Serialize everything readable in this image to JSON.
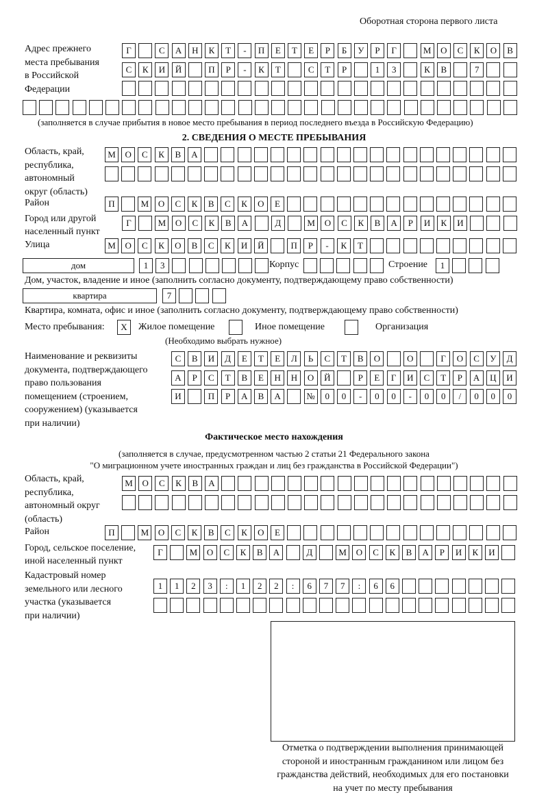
{
  "page_header": "Оборотная сторона первого листа",
  "prev_address": {
    "label": [
      "Адрес прежнего",
      "места пребывания",
      "в Российской",
      "Федерации"
    ],
    "line1": "Г САНКТ-ПЕТЕРБУРГ МОСКОВ",
    "line2": "СКИЙ ПР-КТ СТР 13 КВ 7",
    "line3": "",
    "line4": "",
    "hint": "(заполняется в случае прибытия в новое место пребывания в период последнего въезда в Российскую Федерацию)"
  },
  "section2": {
    "title": "2. СВЕДЕНИЯ О МЕСТЕ ПРЕБЫВАНИЯ",
    "region_label": [
      "Область, край,",
      "республика,",
      "автономный",
      "округ (область)"
    ],
    "region1": "МОСКВА",
    "region2": "",
    "district_label": "Район",
    "district": "П МОСКВСКОЕ",
    "city_label": [
      "Город или другой",
      "населенный пункт"
    ],
    "city": "Г МОСКВА Д МОСКВАРИКИ",
    "street_label": "Улица",
    "street": "МОСКОВСКИЙ ПР-КТ",
    "house_type": "дом",
    "house_number": "13",
    "korpus_label": "Корпус",
    "korpus": "",
    "building_label": "Строение",
    "building": "1",
    "house_hint": "Дом, участок, владение и иное (заполнить согласно документу, подтверждающему право собственности)",
    "apt_type": "квартира",
    "apt_number": "7",
    "apt_hint": "Квартира, комната, офис и иное (заполнить согласно документу, подтверждающему право собственности)",
    "place_label": "Место пребывания:",
    "place_options": [
      {
        "label": "Жилое помещение",
        "mark": "X"
      },
      {
        "label": "Иное помещение",
        "mark": ""
      },
      {
        "label": "Организация",
        "mark": ""
      }
    ],
    "place_hint": "(Необходимо выбрать нужное)",
    "doc_label": [
      "Наименование и реквизиты",
      "документа, подтверждающего",
      "право пользования",
      "помещением (строением,",
      "сооружением) (указывается",
      "при наличии)"
    ],
    "doc1": "СВИДЕТЕЛЬСТВО О ГОСУД",
    "doc2": "АРСТВЕННОЙ РЕГИСТРАЦИ",
    "doc3": "И ПРАВА №00-00-00/000"
  },
  "actual": {
    "title": "Фактическое место нахождения",
    "note1": "(заполняется в случае, предусмотренном частью 2 статьи 21 Федерального закона",
    "note2": "\"О миграционном учете иностранных граждан и лиц без гражданства в Российской Федерации\")",
    "region_label": [
      "Область, край,",
      "республика,",
      "автономный округ",
      "(область)"
    ],
    "region1": "МОСКВА",
    "region2": "",
    "district_label": "Район",
    "district": "П МОСКВСКОЕ",
    "city_label": [
      "Город, сельское поселение,",
      "иной населенный пункт"
    ],
    "city": "Г МОСКВА Д МОСКВАРИКИ",
    "cadastre_label": [
      "Кадастровый номер",
      "земельного или лесного",
      "участка (указывается",
      "при наличии)"
    ],
    "cadastre1": "1123:122:677:66",
    "cadastre2": "",
    "stamp_caption": [
      "Отметка о подтверждении выполнения принимающей",
      "стороной и иностранным гражданином или лицом без",
      "гражданства действий, необходимых для его постановки",
      "на учет по месту пребывания"
    ]
  }
}
